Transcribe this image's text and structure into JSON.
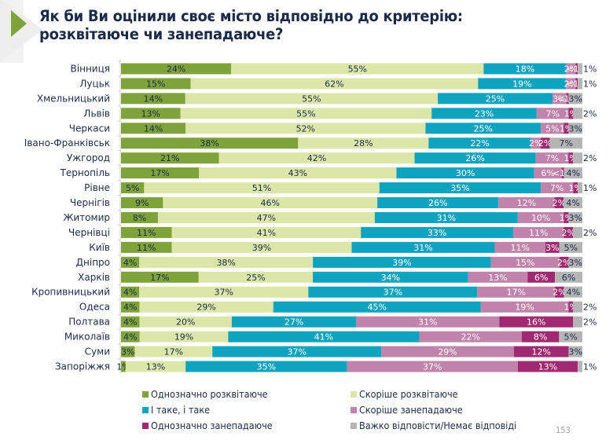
{
  "header": {
    "title_line1": "Як би Ви оцінили своє місто відповідно до критерію:",
    "title_line2": "розквітаюче чи занепадаюче?",
    "arrow_icon": "play-triangle-icon",
    "accent_color": "#7fa23a"
  },
  "page_number": "153",
  "chart_data": {
    "type": "bar",
    "orientation": "horizontal",
    "stacked": true,
    "title": "Як би Ви оцінили своє місто відповідно до критерію: розквітаюче чи занепадаюче?",
    "xlabel": "",
    "ylabel": "",
    "xlim": [
      0,
      100
    ],
    "grid": false,
    "legend_position": "bottom",
    "categories": [
      "Вінниця",
      "Луцьк",
      "Хмельницький",
      "Львів",
      "Черкаси",
      "Івано-Франківськ",
      "Ужгород",
      "Тернопіль",
      "Рівне",
      "Чернігів",
      "Житомир",
      "Чернівці",
      "Київ",
      "Дніпро",
      "Харків",
      "Кропивницький",
      "Одеса",
      "Полтава",
      "Миколаїв",
      "Суми",
      "Запоріжжя"
    ],
    "series": [
      {
        "name": "Однозначно розквітаюче",
        "color": "#7fa23a",
        "label_color": "#1c2a4a",
        "values": [
          24,
          15,
          14,
          13,
          14,
          38,
          21,
          17,
          5,
          9,
          8,
          11,
          11,
          4,
          17,
          4,
          4,
          4,
          4,
          3,
          1
        ],
        "labels": [
          "24%",
          "15%",
          "14%",
          "13%",
          "14%",
          "38%",
          "21%",
          "17%",
          "5%",
          "9%",
          "8%",
          "11%",
          "11%",
          "4%",
          "17%",
          "4%",
          "4%",
          "4%",
          "4%",
          "3%",
          "1%"
        ]
      },
      {
        "name": "Скоріше розквітаюче",
        "color": "#dde6a9",
        "label_color": "#1c2a4a",
        "values": [
          55,
          62,
          55,
          55,
          52,
          28,
          42,
          43,
          51,
          46,
          47,
          41,
          39,
          38,
          25,
          37,
          29,
          20,
          19,
          17,
          13
        ],
        "labels": [
          "55%",
          "62%",
          "55%",
          "55%",
          "52%",
          "28%",
          "42%",
          "43%",
          "51%",
          "46%",
          "47%",
          "41%",
          "39%",
          "38%",
          "25%",
          "37%",
          "29%",
          "20%",
          "19%",
          "17%",
          "13%"
        ]
      },
      {
        "name": "І таке, і таке",
        "color": "#0fa3bf",
        "label_color": "#ffffff",
        "values": [
          18,
          19,
          25,
          23,
          25,
          22,
          26,
          30,
          35,
          26,
          31,
          33,
          31,
          39,
          34,
          37,
          45,
          27,
          41,
          37,
          35
        ],
        "labels": [
          "18%",
          "19%",
          "25%",
          "23%",
          "25%",
          "22%",
          "26%",
          "30%",
          "35%",
          "26%",
          "31%",
          "33%",
          "31%",
          "39%",
          "34%",
          "37%",
          "45%",
          "27%",
          "41%",
          "37%",
          "35%"
        ]
      },
      {
        "name": "Скоріше занепадаюче",
        "color": "#c083ab",
        "label_color": "#ffffff",
        "values": [
          2,
          2,
          3,
          7,
          5,
          2,
          7,
          6,
          7,
          12,
          10,
          11,
          11,
          15,
          13,
          17,
          19,
          31,
          22,
          29,
          37
        ],
        "labels": [
          "2%",
          "2%",
          "3%",
          "7%",
          "5%",
          "2%",
          "7%",
          "6%",
          "7%",
          "12%",
          "10%",
          "11%",
          "11%",
          "15%",
          "13%",
          "17%",
          "19%",
          "31%",
          "22%",
          "29%",
          "37%"
        ]
      },
      {
        "name": "Однозначно занепадаюче",
        "color": "#a02a72",
        "label_color": "#ffffff",
        "values": [
          0.5,
          0.5,
          0.5,
          1,
          1,
          2,
          1,
          0.5,
          1,
          2,
          1,
          2,
          3,
          2,
          6,
          2,
          1,
          16,
          8,
          12,
          13
        ],
        "labels": [
          "<1%",
          "<1%",
          "<1%",
          "1%",
          "1%",
          "2%",
          "1%",
          "<1%",
          "1%",
          "2%",
          "1%",
          "2%",
          "3%",
          "2%",
          "6%",
          "2%",
          "1%",
          "16%",
          "8%",
          "12%",
          "13%"
        ]
      },
      {
        "name": "Важко відповісти/Немає відповіді",
        "color": "#b5b5b5",
        "label_color": "#1c2a4a",
        "values": [
          1,
          1,
          3,
          2,
          3,
          7,
          2,
          4,
          1,
          4,
          3,
          2,
          5,
          3,
          6,
          4,
          2,
          2,
          5,
          3,
          1
        ],
        "labels": [
          "1%",
          "1%",
          "3%",
          "2%",
          "3%",
          "7%",
          "2%",
          "4%",
          "1%",
          "4%",
          "3%",
          "2%",
          "5%",
          "3%",
          "6%",
          "4%",
          "2%",
          "2%",
          "5%",
          "3%",
          "1%"
        ]
      }
    ]
  }
}
